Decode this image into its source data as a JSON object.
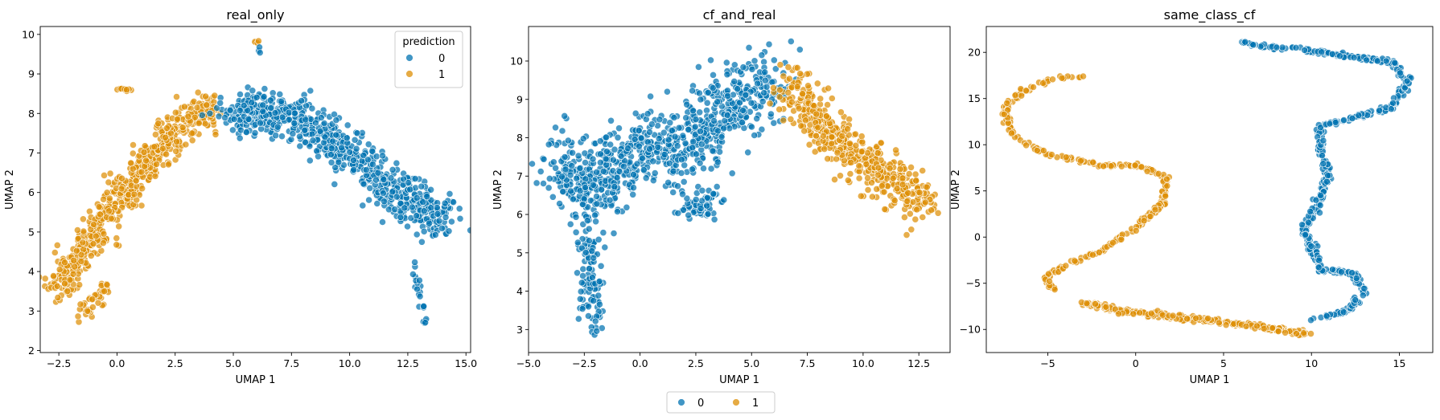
{
  "legend": {
    "title": "prediction",
    "entries": [
      {
        "label": "0",
        "color": "#0173b2"
      },
      {
        "label": "1",
        "color": "#de8f05"
      }
    ]
  },
  "bottom_legend": {
    "entries": [
      {
        "label": "0",
        "color": "#0173b2"
      },
      {
        "label": "1",
        "color": "#de8f05"
      }
    ]
  },
  "chart_data": [
    {
      "type": "scatter",
      "title": "real_only",
      "xlabel": "UMAP 1",
      "ylabel": "UMAP 2",
      "xlim": [
        -3.3,
        15.2
      ],
      "ylim": [
        1.95,
        10.2
      ],
      "xticks": [
        -2.5,
        0.0,
        2.5,
        5.0,
        7.5,
        10.0,
        12.5,
        15.0
      ],
      "xtick_labels": [
        "−2.5",
        "0.0",
        "2.5",
        "5.0",
        "7.5",
        "10.0",
        "12.5",
        "15.0"
      ],
      "yticks": [
        2,
        3,
        4,
        5,
        6,
        7,
        8,
        9,
        10
      ],
      "ytick_labels": [
        "2",
        "3",
        "4",
        "5",
        "6",
        "7",
        "8",
        "9",
        "10"
      ],
      "legend_position": "top-right",
      "series": [
        {
          "name": "1",
          "color": "#de8f05",
          "clusters": [
            {
              "path": [
                [
                  -2.5,
                  3.6
                ],
                [
                  -1.3,
                  4.7
                ],
                [
                  0.0,
                  5.8
                ],
                [
                  1.5,
                  6.8
                ],
                [
                  2.8,
                  7.8
                ],
                [
                  4.2,
                  8.1
                ]
              ],
              "spread_x": 0.55,
              "spread_y": 0.45,
              "n": 620
            },
            {
              "path": [
                [
                  -1.5,
                  2.9
                ],
                [
                  -0.5,
                  3.6
                ]
              ],
              "spread_x": 0.3,
              "spread_y": 0.25,
              "n": 40
            },
            {
              "path": [
                [
                  0.0,
                  8.6
                ],
                [
                  0.8,
                  8.6
                ]
              ],
              "spread_x": 0.15,
              "spread_y": 0.06,
              "n": 12
            },
            {
              "path": [
                [
                  5.8,
                  9.8
                ],
                [
                  6.1,
                  9.8
                ]
              ],
              "spread_x": 0.08,
              "spread_y": 0.05,
              "n": 4
            }
          ]
        },
        {
          "name": "0",
          "color": "#0173b2",
          "clusters": [
            {
              "path": [
                [
                  4.8,
                  8.0
                ],
                [
                  7.5,
                  8.0
                ],
                [
                  10.0,
                  7.0
                ],
                [
                  12.5,
                  5.8
                ],
                [
                  14.2,
                  5.3
                ]
              ],
              "spread_x": 0.8,
              "spread_y": 0.5,
              "n": 720
            },
            {
              "path": [
                [
                  12.6,
                  4.5
                ],
                [
                  13.4,
                  2.3
                ]
              ],
              "spread_x": 0.12,
              "spread_y": 0.15,
              "n": 22
            },
            {
              "path": [
                [
                  6.1,
                  9.6
                ],
                [
                  6.1,
                  9.7
                ]
              ],
              "spread_x": 0.05,
              "spread_y": 0.1,
              "n": 3
            }
          ]
        }
      ]
    },
    {
      "type": "scatter",
      "title": "cf_and_real",
      "xlabel": "UMAP 1",
      "ylabel": "UMAP 2",
      "xlim": [
        -5.0,
        13.9
      ],
      "ylim": [
        2.4,
        10.9
      ],
      "xticks": [
        -5.0,
        -2.5,
        0.0,
        2.5,
        5.0,
        7.5,
        10.0,
        12.5
      ],
      "xtick_labels": [
        "−5.0",
        "−2.5",
        "0.0",
        "2.5",
        "5.0",
        "7.5",
        "10.0",
        "12.5"
      ],
      "yticks": [
        3,
        4,
        5,
        6,
        7,
        8,
        9,
        10
      ],
      "ytick_labels": [
        "3",
        "4",
        "5",
        "6",
        "7",
        "8",
        "9",
        "10"
      ],
      "series": [
        {
          "name": "0",
          "color": "#0173b2",
          "clusters": [
            {
              "path": [
                [
                  -4.0,
                  7.5
                ],
                [
                  -2.0,
                  6.6
                ],
                [
                  0.0,
                  7.8
                ],
                [
                  2.0,
                  7.6
                ],
                [
                  4.0,
                  9.0
                ],
                [
                  6.0,
                  9.3
                ]
              ],
              "spread_x": 1.0,
              "spread_y": 0.9,
              "n": 800
            },
            {
              "path": [
                [
                  -2.5,
                  6.0
                ],
                [
                  -2.0,
                  3.0
                ]
              ],
              "spread_x": 0.5,
              "spread_y": 0.4,
              "n": 110
            },
            {
              "path": [
                [
                  2.0,
                  6.0
                ],
                [
                  3.5,
                  6.4
                ]
              ],
              "spread_x": 0.5,
              "spread_y": 0.3,
              "n": 60
            }
          ]
        },
        {
          "name": "1",
          "color": "#de8f05",
          "clusters": [
            {
              "path": [
                [
                  6.6,
                  9.4
                ],
                [
                  8.0,
                  8.4
                ],
                [
                  10.0,
                  7.4
                ],
                [
                  12.0,
                  6.6
                ],
                [
                  12.8,
                  6.3
                ]
              ],
              "spread_x": 0.7,
              "spread_y": 0.6,
              "n": 520
            }
          ]
        }
      ]
    },
    {
      "type": "scatter",
      "title": "same_class_cf",
      "xlabel": "UMAP 1",
      "ylabel": "UMAP 2",
      "xlim": [
        -8.5,
        16.9
      ],
      "ylim": [
        -12.5,
        22.8
      ],
      "xticks": [
        -5,
        0,
        5,
        10,
        15
      ],
      "xtick_labels": [
        "−5",
        "0",
        "5",
        "10",
        "15"
      ],
      "yticks": [
        -10,
        -5,
        0,
        5,
        10,
        15,
        20
      ],
      "ytick_labels": [
        "−10",
        "−5",
        "0",
        "5",
        "10",
        "15",
        "20"
      ],
      "series": [
        {
          "name": "1",
          "color": "#de8f05",
          "clusters": [
            {
              "path": [
                [
                  -3.0,
                  17.5
                ],
                [
                  -5.0,
                  17.0
                ],
                [
                  -6.5,
                  15.8
                ],
                [
                  -7.5,
                  14.0
                ],
                [
                  -7.0,
                  11.0
                ],
                [
                  -5.0,
                  9.0
                ],
                [
                  -2.0,
                  7.8
                ],
                [
                  0.0,
                  7.8
                ],
                [
                  1.8,
                  6.5
                ],
                [
                  1.5,
                  3.5
                ],
                [
                  0.0,
                  1.0
                ],
                [
                  -2.0,
                  -1.5
                ],
                [
                  -4.0,
                  -3.0
                ],
                [
                  -5.2,
                  -4.5
                ],
                [
                  -4.5,
                  -6.0
                ]
              ],
              "spread_x": 0.18,
              "spread_y": 0.18,
              "n": 300
            },
            {
              "path": [
                [
                  -3.0,
                  -7.0
                ],
                [
                  -1.0,
                  -8.0
                ],
                [
                  2.0,
                  -8.6
                ],
                [
                  5.0,
                  -9.2
                ],
                [
                  8.0,
                  -10.0
                ],
                [
                  9.8,
                  -10.5
                ]
              ],
              "spread_x": 0.18,
              "spread_y": 0.25,
              "n": 260
            }
          ]
        },
        {
          "name": "0",
          "color": "#0173b2",
          "clusters": [
            {
              "path": [
                [
                  5.8,
                  21.0
                ],
                [
                  9.0,
                  20.4
                ],
                [
                  12.0,
                  19.6
                ],
                [
                  14.5,
                  19.0
                ],
                [
                  15.5,
                  17.0
                ],
                [
                  14.5,
                  14.0
                ],
                [
                  12.5,
                  13.0
                ],
                [
                  10.5,
                  12.0
                ],
                [
                  10.5,
                  9.0
                ],
                [
                  11.0,
                  7.0
                ],
                [
                  10.5,
                  4.0
                ],
                [
                  9.5,
                  1.0
                ],
                [
                  10.0,
                  -1.0
                ],
                [
                  10.5,
                  -3.5
                ],
                [
                  12.5,
                  -4.0
                ],
                [
                  13.0,
                  -6.0
                ],
                [
                  12.0,
                  -8.0
                ],
                [
                  10.0,
                  -9.0
                ]
              ],
              "spread_x": 0.22,
              "spread_y": 0.22,
              "n": 520
            }
          ]
        }
      ]
    }
  ]
}
